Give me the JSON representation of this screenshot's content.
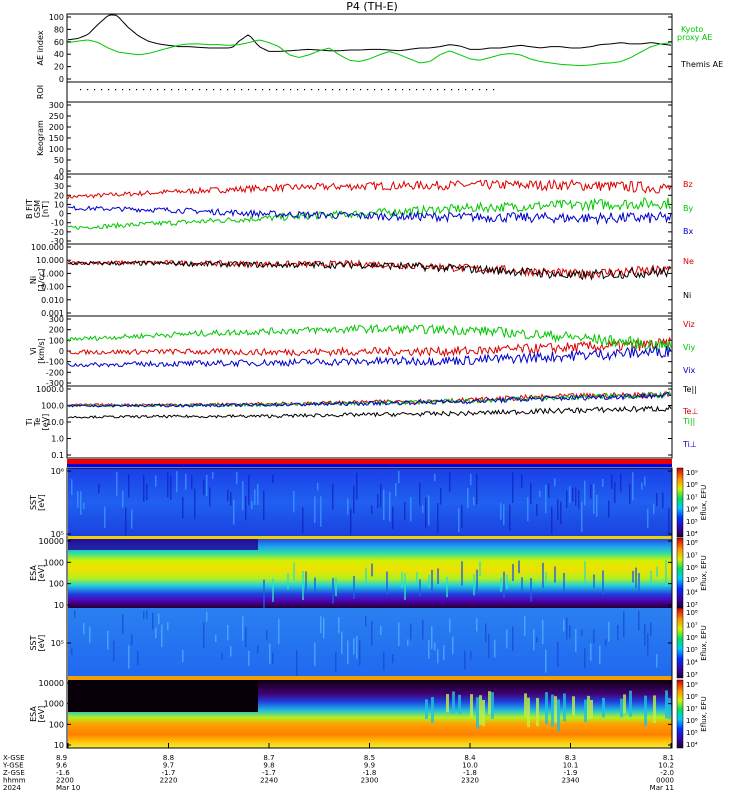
{
  "title": "P4 (TH-E)",
  "panels": {
    "ae": {
      "ylabel": "AE index",
      "ticks": [
        "100",
        "80",
        "60",
        "40",
        "20",
        "0"
      ],
      "legend": [
        {
          "text": "Kyoto",
          "color": "#00c800"
        },
        {
          "text": "proxy AE",
          "color": "#00c800"
        },
        {
          "text": "Themis AE",
          "color": "#000000"
        }
      ]
    },
    "roi": {
      "ylabel": "ROI"
    },
    "keogram": {
      "ylabel": "Keogram",
      "ticks": [
        "300",
        "250",
        "200",
        "150",
        "100",
        "50",
        "0"
      ]
    },
    "bfield": {
      "ylabel": [
        "B FIT",
        "GSM",
        "[nT]"
      ],
      "ticks": [
        "40",
        "30",
        "20",
        "10",
        "0",
        "-10",
        "-20",
        "-30"
      ],
      "legend": [
        {
          "text": "Bz",
          "color": "#dd0000"
        },
        {
          "text": "By",
          "color": "#00c800"
        },
        {
          "text": "Bx",
          "color": "#0000cc"
        }
      ]
    },
    "density": {
      "ylabel": [
        "Ni",
        "[1/cc]"
      ],
      "ticks": [
        "100.000",
        "10.000",
        "1.000",
        "0.100",
        "0.010",
        "0.001"
      ],
      "legend": [
        {
          "text": "Ne",
          "color": "#dd0000"
        },
        {
          "text": "Ni",
          "color": "#000000"
        }
      ]
    },
    "velocity": {
      "ylabel": [
        "Vi",
        "[km/s]"
      ],
      "ticks": [
        "300",
        "200",
        "100",
        "0",
        "-100",
        "-200",
        "-300"
      ],
      "legend": [
        {
          "text": "Viz",
          "color": "#dd0000"
        },
        {
          "text": "Viy",
          "color": "#00c800"
        },
        {
          "text": "Vix",
          "color": "#0000cc"
        }
      ]
    },
    "temperature": {
      "ylabel": [
        "Ti",
        "Te",
        "[eV]"
      ],
      "ticks": [
        "1000.0",
        "100.0",
        "10.0",
        "1.0",
        "0.1"
      ],
      "legend": [
        {
          "text": "Te||",
          "color": "#000000"
        },
        {
          "text": "Te⊥",
          "color": "#dd0000"
        },
        {
          "text": "Ti||",
          "color": "#00c800"
        },
        {
          "text": "Ti⊥",
          "color": "#0000cc"
        }
      ]
    },
    "sst_ions": {
      "ylabel": [
        "SST",
        "[eV]"
      ],
      "ticks": [
        "10⁶",
        "10⁵"
      ],
      "colorbar": {
        "label": "Eflux, EFU",
        "ticks": [
          "10⁹",
          "10⁸",
          "10⁷",
          "10⁶",
          "10⁵",
          "10⁴"
        ]
      }
    },
    "esa_ions": {
      "ylabel": [
        "ESA",
        "[eV]"
      ],
      "ticks": [
        "10000",
        "1000",
        "100",
        "10"
      ],
      "colorbar": {
        "label": "Eflux, EFU",
        "ticks": [
          "10⁸",
          "10⁷",
          "10⁶",
          "10⁵",
          "10⁴",
          "10³"
        ]
      }
    },
    "sst_electrons": {
      "ylabel": [
        "SST",
        "[eV]"
      ],
      "ticks": [
        "10⁵"
      ],
      "colorbar": {
        "label": "Eflux, EFU",
        "ticks": [
          "10⁸",
          "10⁷",
          "10⁶",
          "10⁵",
          "10⁴",
          "10³"
        ]
      }
    },
    "esa_electrons": {
      "ylabel": [
        "ESA",
        "[eV]"
      ],
      "ticks": [
        "10000",
        "1000",
        "100",
        "10"
      ],
      "colorbar": {
        "label": "Eflux, EFU",
        "ticks": [
          "10⁹",
          "10⁸",
          "10⁷",
          "10⁶",
          "10⁵",
          "10⁴"
        ]
      }
    }
  },
  "colors": {
    "black": "#000000",
    "green": "#00c800",
    "red": "#dd0000",
    "blue": "#0000cc",
    "status_bar_red": "#ee0000",
    "status_bar_blue": "#0000ee"
  },
  "chart_data": {
    "type": "line",
    "title": "P4 (TH-E)",
    "xaxis": {
      "row_labels": [
        "X-GSE",
        "Y-GSE",
        "Z-GSE",
        "hhmm",
        "2024"
      ],
      "columns": [
        {
          "values": [
            "8.9",
            "9.6",
            "-1.6",
            "2200",
            "Mar 10"
          ]
        },
        {
          "values": [
            "8.8",
            "9.7",
            "-1.7",
            "2220",
            ""
          ]
        },
        {
          "values": [
            "8.7",
            "9.8",
            "-1.7",
            "2240",
            ""
          ]
        },
        {
          "values": [
            "8.5",
            "9.9",
            "-1.8",
            "2300",
            ""
          ]
        },
        {
          "values": [
            "8.4",
            "10.0",
            "-1.8",
            "2320",
            ""
          ]
        },
        {
          "values": [
            "8.3",
            "10.1",
            "-1.9",
            "2340",
            ""
          ]
        },
        {
          "values": [
            "8.1",
            "10.2",
            "-2.0",
            "0000",
            "Mar 11"
          ]
        }
      ]
    },
    "ae_panel": {
      "ylim": [
        0,
        100
      ],
      "series": [
        {
          "name": "Themis AE",
          "color": "#000000",
          "x": [
            0,
            2,
            4,
            6,
            8,
            9,
            10,
            12,
            14,
            16,
            18,
            20,
            22,
            24,
            26,
            28,
            30,
            32,
            33,
            34,
            36,
            38,
            40,
            42,
            44,
            46,
            48,
            50,
            52,
            54,
            56,
            58,
            60,
            62,
            64,
            66,
            68,
            70,
            72,
            74,
            76,
            78,
            80,
            82,
            84,
            86,
            88,
            90,
            92,
            94,
            96,
            98,
            100,
            102,
            104,
            106,
            108,
            110,
            112,
            114,
            116,
            118,
            120
          ],
          "y": [
            62,
            64,
            70,
            85,
            98,
            101,
            96,
            80,
            68,
            60,
            56,
            54,
            52,
            52,
            51,
            50,
            50,
            50,
            52,
            60,
            70,
            52,
            45,
            45,
            46,
            47,
            48,
            47,
            46,
            46,
            47,
            47,
            48,
            48,
            47,
            46,
            48,
            50,
            50,
            52,
            55,
            53,
            48,
            48,
            50,
            50,
            52,
            54,
            52,
            50,
            52,
            52,
            50,
            50,
            52,
            55,
            56,
            58,
            56,
            56,
            58,
            56,
            54
          ]
        },
        {
          "name": "Kyoto proxy AE",
          "color": "#00c800",
          "x": [
            0,
            2,
            4,
            6,
            8,
            10,
            12,
            14,
            16,
            18,
            20,
            22,
            24,
            26,
            28,
            30,
            32,
            34,
            36,
            38,
            40,
            42,
            44,
            46,
            48,
            50,
            52,
            54,
            56,
            58,
            60,
            62,
            64,
            66,
            68,
            70,
            72,
            74,
            76,
            78,
            80,
            82,
            84,
            86,
            88,
            90,
            92,
            94,
            96,
            98,
            100,
            102,
            104,
            106,
            108,
            110,
            112,
            114,
            116,
            118,
            120
          ],
          "y": [
            58,
            60,
            62,
            58,
            50,
            44,
            42,
            40,
            42,
            46,
            50,
            54,
            56,
            56,
            55,
            55,
            54,
            55,
            58,
            62,
            58,
            52,
            40,
            36,
            40,
            46,
            50,
            40,
            32,
            30,
            34,
            40,
            45,
            40,
            34,
            28,
            30,
            40,
            46,
            40,
            34,
            32,
            36,
            40,
            42,
            40,
            34,
            30,
            28,
            26,
            25,
            24,
            25,
            27,
            28,
            30,
            36,
            44,
            52,
            56,
            58
          ]
        }
      ]
    },
    "bfield_panel": {
      "ylim": [
        -30,
        40
      ],
      "series": [
        {
          "name": "Bz",
          "color": "#dd0000",
          "x": [
            0,
            20,
            40,
            60,
            80,
            100,
            120
          ],
          "y": [
            17,
            22,
            26,
            28,
            29,
            29,
            26
          ]
        },
        {
          "name": "By",
          "color": "#00c800",
          "x": [
            0,
            20,
            40,
            60,
            80,
            100,
            120
          ],
          "y": [
            -14,
            -9,
            -4,
            1,
            6,
            9,
            11
          ]
        },
        {
          "name": "Bx",
          "color": "#0000cc",
          "x": [
            0,
            20,
            40,
            60,
            80,
            100,
            120
          ],
          "y": [
            6,
            4,
            0,
            -2,
            -3,
            -4,
            -4
          ]
        }
      ]
    },
    "density_panel": {
      "ylim": [
        0.001,
        100
      ],
      "scale": "log",
      "series": [
        {
          "name": "Ne",
          "color": "#dd0000",
          "x": [
            0,
            20,
            40,
            60,
            80,
            100,
            120
          ],
          "y": [
            5,
            5,
            4,
            4,
            2,
            0.8,
            1.5
          ]
        },
        {
          "name": "Ni",
          "color": "#000000",
          "x": [
            0,
            20,
            40,
            60,
            80,
            100,
            120
          ],
          "y": [
            4.5,
            4.5,
            3.5,
            3.5,
            1.8,
            0.6,
            1.2
          ]
        }
      ]
    },
    "velocity_panel": {
      "ylim": [
        -300,
        300
      ],
      "series": [
        {
          "name": "Viz",
          "color": "#dd0000",
          "x": [
            0,
            20,
            40,
            60,
            80,
            100,
            120
          ],
          "y": [
            -10,
            -5,
            -10,
            -5,
            0,
            30,
            60
          ]
        },
        {
          "name": "Viy",
          "color": "#00c800",
          "x": [
            0,
            20,
            40,
            60,
            80,
            100,
            120
          ],
          "y": [
            100,
            140,
            170,
            190,
            180,
            120,
            40
          ]
        },
        {
          "name": "Vix",
          "color": "#0000cc",
          "x": [
            0,
            20,
            40,
            60,
            80,
            100,
            120
          ],
          "y": [
            -120,
            -110,
            -100,
            -90,
            -80,
            -40,
            0
          ]
        }
      ]
    },
    "temperature_panel": {
      "ylim": [
        0.1,
        3000
      ],
      "scale": "log",
      "series": [
        {
          "name": "Te||",
          "color": "#000000",
          "x": [
            0,
            20,
            40,
            60,
            80,
            100,
            120
          ],
          "y": [
            35,
            38,
            40,
            50,
            60,
            90,
            120
          ]
        },
        {
          "name": "Te⊥",
          "color": "#dd0000",
          "x": [
            0,
            20,
            40,
            60,
            80,
            100,
            120
          ],
          "y": [
            200,
            210,
            220,
            300,
            400,
            700,
            900
          ]
        },
        {
          "name": "Ti||",
          "color": "#00c800",
          "x": [
            0,
            20,
            40,
            60,
            80,
            100,
            120
          ],
          "y": [
            180,
            190,
            200,
            260,
            350,
            600,
            850
          ]
        },
        {
          "name": "Ti⊥",
          "color": "#0000cc",
          "x": [
            0,
            20,
            40,
            60,
            80,
            100,
            120
          ],
          "y": [
            170,
            180,
            200,
            250,
            330,
            550,
            800
          ]
        }
      ]
    }
  }
}
